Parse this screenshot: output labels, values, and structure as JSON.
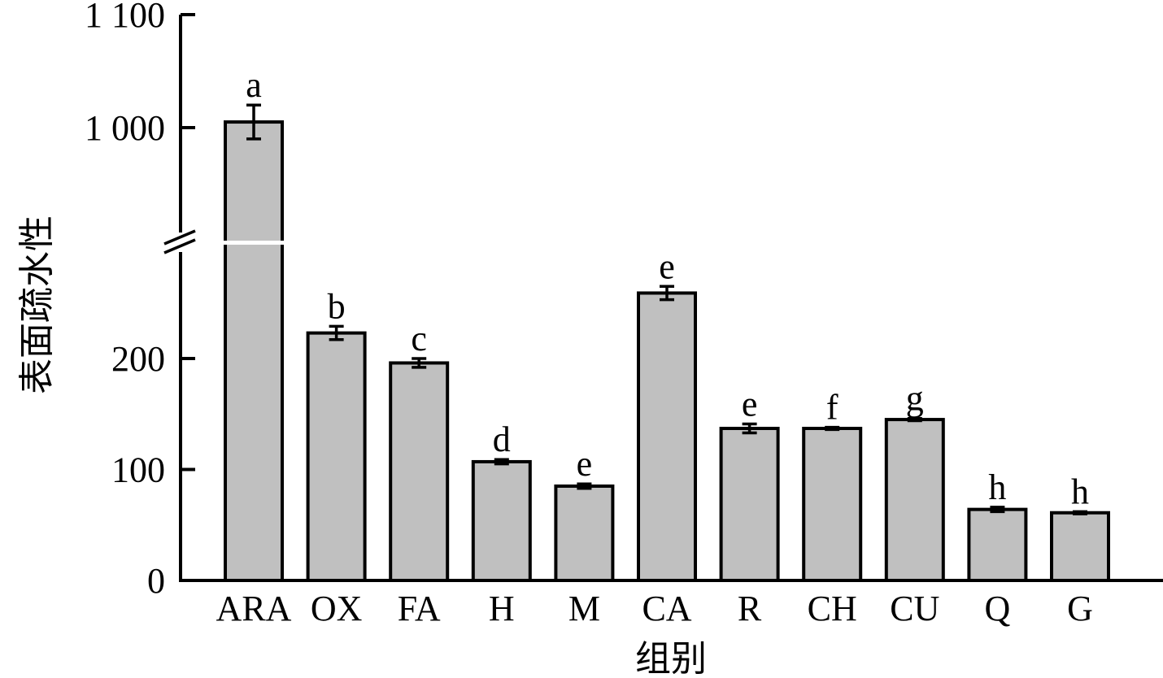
{
  "chart_data": {
    "type": "bar",
    "xlabel": "组别",
    "ylabel": "表面疏水性",
    "categories": [
      "ARA",
      "OX",
      "FA",
      "H",
      "M",
      "CA",
      "R",
      "CH",
      "CU",
      "Q",
      "G"
    ],
    "values": [
      1005,
      223,
      196,
      107,
      85,
      259,
      137,
      137,
      145,
      64,
      61
    ],
    "errors": [
      15,
      6,
      4,
      2,
      2,
      6,
      4,
      1,
      1,
      2,
      1
    ],
    "significance": [
      "a",
      "b",
      "c",
      "d",
      "e",
      "e",
      "e",
      "f",
      "g",
      "h",
      "h"
    ],
    "yticks": [
      {
        "value": 0,
        "label": "0"
      },
      {
        "value": 100,
        "label": "100"
      },
      {
        "value": 200,
        "label": "200"
      },
      {
        "value": 1000,
        "label": "1 000"
      },
      {
        "value": 1100,
        "label": "1 100"
      }
    ],
    "ylim": [
      0,
      1100
    ],
    "axis_break": [
      300,
      900
    ],
    "grid": false,
    "legend": "none",
    "bar_color": "#c0c0c0",
    "edge_color": "#000000"
  }
}
